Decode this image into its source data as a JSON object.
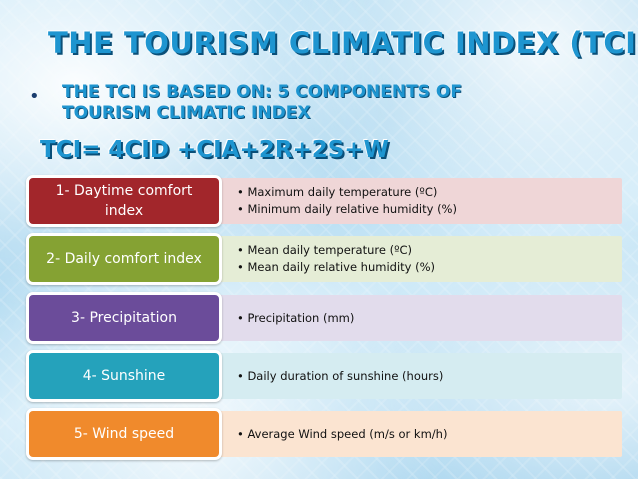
{
  "title": "THE TOURISM CLIMATIC INDEX (TCI)",
  "subtitle": "THE TCI IS BASED ON: 5 COMPONENTS OF TOURISM CLIMATIC INDEX",
  "bullet": "•",
  "formula": "TCI= 4CID +CIA+2R+2S+W",
  "components": [
    {
      "label": "1- Daytime comfort index",
      "box_color": "#a2262b",
      "band_color": "#efd6d7",
      "details": [
        "Maximum daily temperature (ºC)",
        "Minimum daily relative humidity (%)"
      ]
    },
    {
      "label": "2- Daily comfort index",
      "box_color": "#85a233",
      "band_color": "#e5edd6",
      "details": [
        "Mean daily temperature (ºC)",
        "Mean daily relative humidity (%)"
      ]
    },
    {
      "label": "3- Precipitation",
      "box_color": "#6b4c9a",
      "band_color": "#e2dcec",
      "details": [
        "Precipitation (mm)"
      ]
    },
    {
      "label": "4- Sunshine",
      "box_color": "#25a2bb",
      "band_color": "#d5ecf1",
      "details": [
        "Daily duration of sunshine (hours)"
      ]
    },
    {
      "label": "5- Wind speed",
      "box_color": "#f08a2c",
      "band_color": "#fbe4d1",
      "details": [
        "Average Wind speed (m/s or km/h)"
      ]
    }
  ]
}
